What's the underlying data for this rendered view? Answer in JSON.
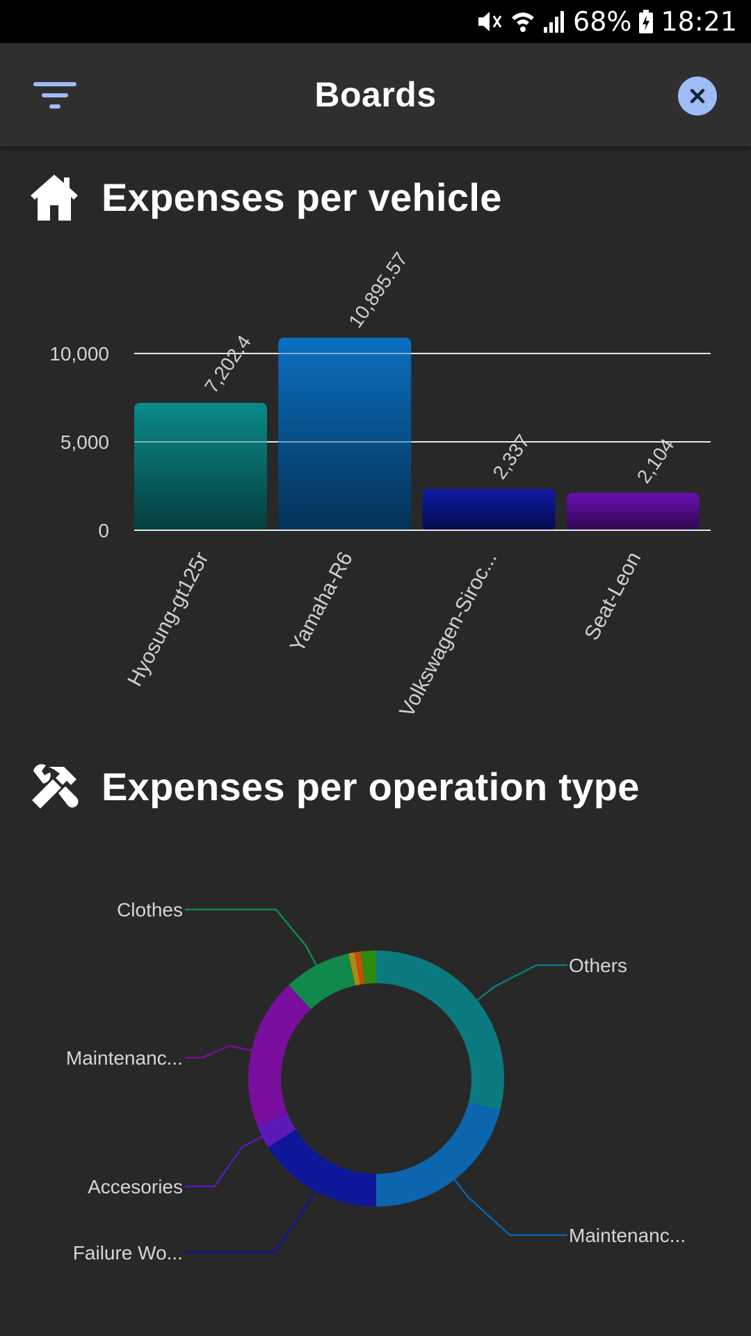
{
  "status_bar": {
    "battery": "68%",
    "time": "18:21"
  },
  "app_bar": {
    "title": "Boards",
    "filter_icon": "filter-icon",
    "close_icon": "close-icon",
    "close_color": "#9ebcf7"
  },
  "sections": {
    "vehicle": {
      "title": "Expenses per vehicle",
      "icon": "home-icon"
    },
    "operation": {
      "title": "Expenses per operation type",
      "icon": "tools-icon"
    }
  },
  "chart_data": [
    {
      "type": "bar",
      "categories": [
        "Hyosung-gt125r",
        "Yamaha-R6",
        "Volkswagen-Siroc...",
        "Seat-Leon"
      ],
      "values": [
        7202.4,
        10895.57,
        2337,
        2104
      ],
      "value_labels": [
        "7,202.4",
        "10,895.57",
        "2,337",
        "2,104"
      ],
      "ylim": [
        0,
        10000
      ],
      "yticks": [
        0,
        5000,
        10000
      ],
      "ytick_labels": [
        "0",
        "5,000",
        "10,000"
      ],
      "grid": true,
      "colors": [
        "#0a8a8a",
        "#0a6fc0",
        "#0e1aa6",
        "#6a0fb0"
      ]
    },
    {
      "type": "pie",
      "donut": true,
      "slices": [
        {
          "label": "Others",
          "value": 29,
          "color": "#0b7a80"
        },
        {
          "label": "Maintenanc...",
          "value": 21,
          "color": "#0c65ad"
        },
        {
          "label": "Failure Wo...",
          "value": 16,
          "color": "#0d1798"
        },
        {
          "label": "Accesories",
          "value": 3,
          "color": "#5b1ab8"
        },
        {
          "label": "Maintenanc...",
          "value": 19,
          "color": "#7a0e9e"
        },
        {
          "label": "Clothes",
          "value": 8.5,
          "color": "#0f8a4a"
        },
        {
          "label": "",
          "value": 0.8,
          "color": "#b08a10"
        },
        {
          "label": "",
          "value": 0.8,
          "color": "#c0500c"
        },
        {
          "label": "",
          "value": 1.9,
          "color": "#2f8a10"
        }
      ]
    }
  ]
}
